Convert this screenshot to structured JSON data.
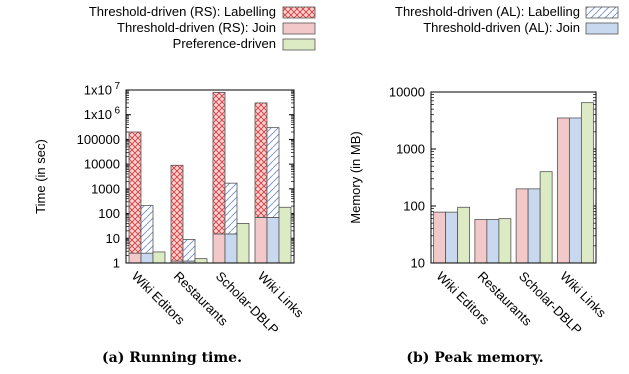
{
  "legend": {
    "left": [
      {
        "label": "Threshold-driven (RS): Labelling",
        "pattern": "crosshatch",
        "color": "#d93b3b",
        "fill": "#f6c5c5"
      },
      {
        "label": "Threshold-driven (RS): Join",
        "pattern": "solid",
        "color": "#555555",
        "fill": "#f2c8c8"
      },
      {
        "label": "Preference-driven",
        "pattern": "solid",
        "color": "#555555",
        "fill": "#dcebc3"
      }
    ],
    "right": [
      {
        "label": "Threshold-driven (AL): Labelling",
        "pattern": "diagonal",
        "color": "#6c8ec6",
        "fill": "#ffffff"
      },
      {
        "label": "Threshold-driven (AL): Join",
        "pattern": "solid",
        "color": "#555555",
        "fill": "#c8d9ef"
      }
    ]
  },
  "captions": {
    "a": "(a) Running time.",
    "b": "(b) Peak memory."
  },
  "chart_data": [
    {
      "type": "bar",
      "ylabel": "Time (in sec)",
      "yscale": "log",
      "ylim": [
        1,
        10000000
      ],
      "yticks": [
        "1",
        "10",
        "100",
        "1000",
        "10000",
        "100000",
        "1x10^6",
        "1x10^7"
      ],
      "categories": [
        "Wiki Editors",
        "Restaurants",
        "Scholar-DBLP",
        "Wiki Links"
      ],
      "series": [
        {
          "name": "Threshold-driven (RS): Labelling",
          "stacked_on": "Threshold-driven (RS): Join",
          "values": [
            200000,
            9000,
            8000000,
            3000000
          ]
        },
        {
          "name": "Threshold-driven (RS): Join",
          "values": [
            2.5,
            1.2,
            15,
            70
          ]
        },
        {
          "name": "Threshold-driven (AL): Labelling",
          "stacked_on": "Threshold-driven (AL): Join",
          "values": [
            210,
            9,
            1700,
            300000
          ]
        },
        {
          "name": "Threshold-driven (AL): Join",
          "values": [
            2.5,
            1.2,
            15,
            70
          ]
        },
        {
          "name": "Preference-driven",
          "values": [
            2.8,
            1.5,
            40,
            180
          ]
        }
      ]
    },
    {
      "type": "bar",
      "ylabel": "Memory (in MB)",
      "yscale": "log",
      "ylim": [
        10,
        10000
      ],
      "yticks": [
        "10",
        "100",
        "1000",
        "10000"
      ],
      "categories": [
        "Wiki Editors",
        "Restaurants",
        "Scholar-DBLP",
        "Wiki Links"
      ],
      "series": [
        {
          "name": "Threshold-driven (RS): Join",
          "values": [
            78,
            58,
            200,
            3500
          ]
        },
        {
          "name": "Threshold-driven (AL): Join",
          "values": [
            78,
            58,
            200,
            3500
          ]
        },
        {
          "name": "Preference-driven",
          "values": [
            95,
            60,
            400,
            6500
          ]
        }
      ]
    }
  ]
}
